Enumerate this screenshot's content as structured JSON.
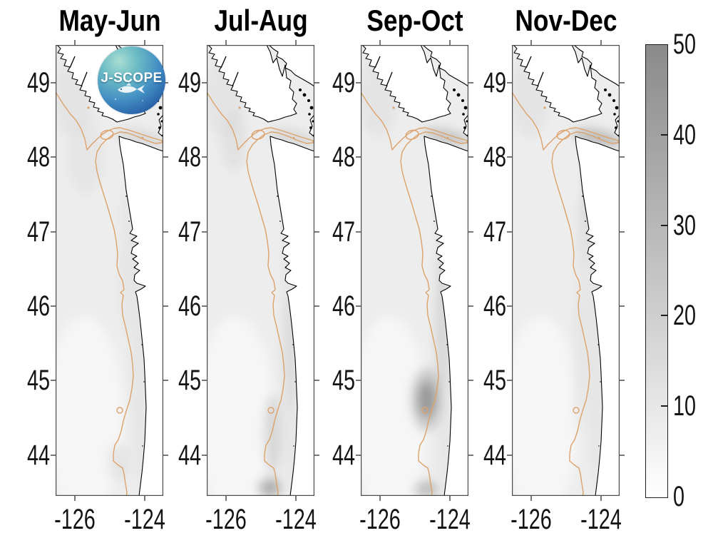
{
  "logo": {
    "text": "J-SCOPE"
  },
  "figure": {
    "titles": [
      "May-Jun",
      "Jul-Aug",
      "Sep-Oct",
      "Nov-Dec"
    ],
    "y_tick_labels": [
      "49",
      "48",
      "47",
      "46",
      "45",
      "44"
    ],
    "x_tick_labels": [
      "-126",
      "-124"
    ],
    "colorbar_tick_labels": [
      "50",
      "40",
      "30",
      "20",
      "10",
      "0"
    ],
    "colors": {
      "contour": "#dca26b",
      "coastline": "#000000",
      "land": "#ffffff",
      "ocean": "#ededed",
      "colorbar_top": "#8a8a8a",
      "colorbar_bottom": "#ffffff",
      "axis": "#4a4a4a",
      "label_text": "#141414"
    }
  },
  "chart_data": {
    "type": "heatmap",
    "panels": [
      "May-Jun",
      "Jul-Aug",
      "Sep-Oct",
      "Nov-Dec"
    ],
    "x_ticks": [
      -126,
      -124
    ],
    "y_ticks": [
      49,
      48,
      47,
      46,
      45,
      44
    ],
    "xlim": [
      -126.55,
      -123.45
    ],
    "ylim": [
      43.45,
      49.5
    ],
    "colorbar": {
      "min": 0,
      "max": 50,
      "ticks": [
        0,
        10,
        20,
        30,
        40,
        50
      ],
      "orientation": "vertical",
      "position": "right",
      "scheme": "white-to-gray"
    },
    "map_overlays": [
      "Pacific Northwest coastline (Vancouver Island to Oregon)",
      "orange shelf-break depth contour",
      "J-SCOPE logo stamped on first panel"
    ],
    "notable_features": [
      {
        "panel": "Sep-Oct",
        "feature": "dark patch near coast",
        "lat": 44.7,
        "lon": -124.5,
        "approx_value": 30
      },
      {
        "panel": "Jul-Aug",
        "feature": "dark patch at bottom edge near coast",
        "lat": 43.5,
        "lon": -124.8,
        "approx_value": 22
      },
      {
        "panel": "Nov-Dec",
        "feature": "darker band at Strait of Juan de Fuca entrance",
        "lat": 48.3,
        "lon": -124.3,
        "approx_value": 15
      },
      {
        "panel": "May-Jun",
        "feature": "mostly pale field offshore",
        "approx_value": 5
      }
    ]
  }
}
